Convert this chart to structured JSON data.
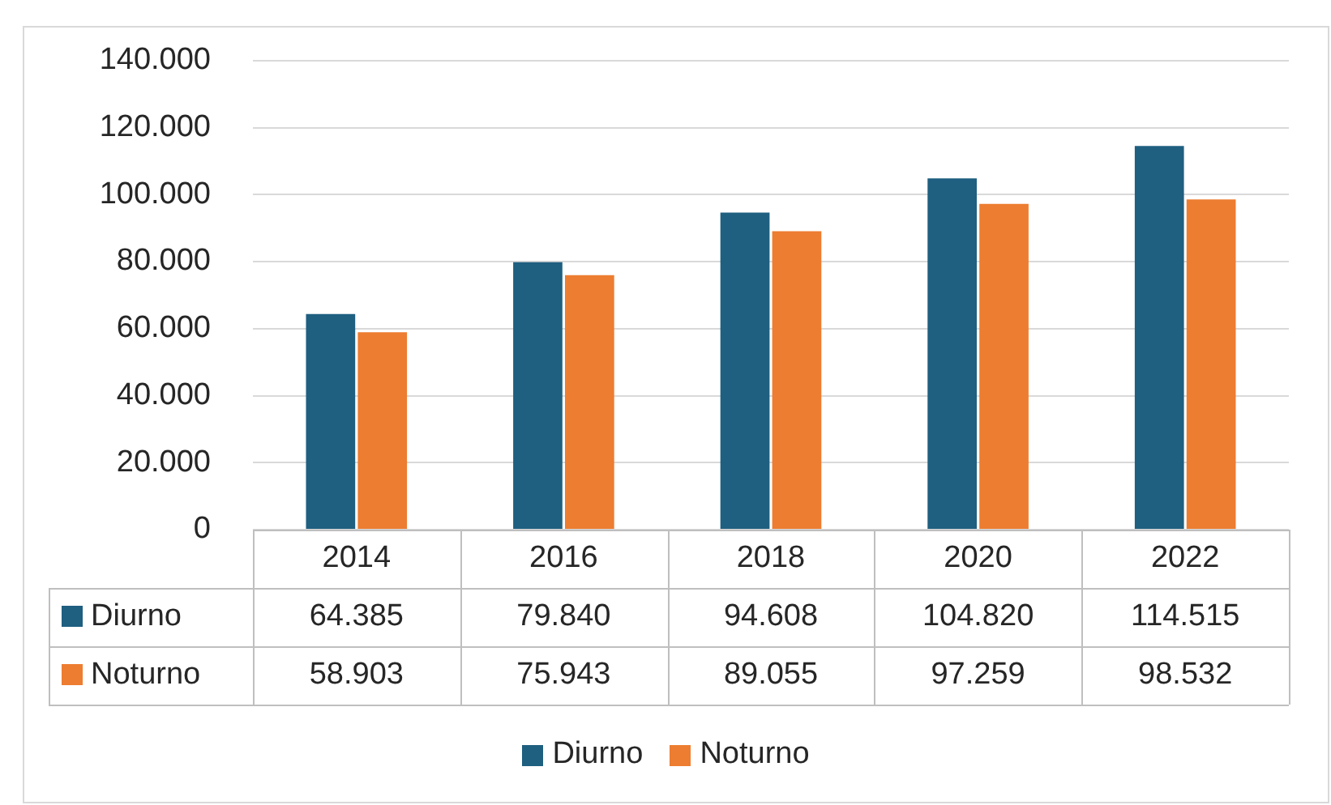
{
  "chart_data": {
    "type": "bar",
    "categories": [
      "2014",
      "2016",
      "2018",
      "2020",
      "2022"
    ],
    "series": [
      {
        "name": "Diurno",
        "color": "#1f5f80",
        "values": [
          64385,
          79840,
          94608,
          104820,
          114515
        ],
        "value_labels": [
          "64.385",
          "79.840",
          "94.608",
          "104.820",
          "114.515"
        ]
      },
      {
        "name": "Noturno",
        "color": "#ed7d31",
        "values": [
          58903,
          75943,
          89055,
          97259,
          98532
        ],
        "value_labels": [
          "58.903",
          "75.943",
          "89.055",
          "97.259",
          "98.532"
        ]
      }
    ],
    "ylim": [
      0,
      140000
    ],
    "yticks": [
      {
        "value": 0,
        "label": "0"
      },
      {
        "value": 20000,
        "label": "20.000"
      },
      {
        "value": 40000,
        "label": "40.000"
      },
      {
        "value": 60000,
        "label": "60.000"
      },
      {
        "value": 80000,
        "label": "80.000"
      },
      {
        "value": 100000,
        "label": "100.000"
      },
      {
        "value": 120000,
        "label": "120.000"
      },
      {
        "value": 140000,
        "label": "140.000"
      }
    ],
    "grid": "y",
    "legend": "bottom"
  }
}
